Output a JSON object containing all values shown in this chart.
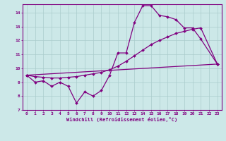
{
  "xlabel": "Windchill (Refroidissement éolien,°C)",
  "bg_color": "#cce8e8",
  "line_color": "#800080",
  "grid_color": "#aacccc",
  "xlim": [
    -0.5,
    23.5
  ],
  "ylim": [
    7,
    14.6
  ],
  "xticks": [
    0,
    1,
    2,
    3,
    4,
    5,
    6,
    7,
    8,
    9,
    10,
    11,
    12,
    13,
    14,
    15,
    16,
    17,
    18,
    19,
    20,
    21,
    22,
    23
  ],
  "yticks": [
    7,
    8,
    9,
    10,
    11,
    12,
    13,
    14
  ],
  "line1_x": [
    0,
    1,
    2,
    3,
    4,
    5,
    6,
    7,
    8,
    9,
    10,
    11,
    12,
    13,
    14,
    15,
    16,
    17,
    18,
    19,
    20,
    21,
    23
  ],
  "line1_y": [
    9.5,
    9.0,
    9.1,
    8.7,
    9.0,
    8.7,
    7.5,
    8.3,
    8.0,
    8.4,
    9.5,
    11.1,
    11.1,
    13.3,
    14.5,
    14.5,
    13.8,
    13.7,
    13.5,
    12.9,
    12.9,
    12.1,
    10.3
  ],
  "line2_x": [
    0,
    1,
    2,
    3,
    4,
    5,
    6,
    7,
    8,
    9,
    10,
    11,
    12,
    13,
    14,
    15,
    16,
    17,
    18,
    19,
    20,
    21,
    23
  ],
  "line2_y": [
    9.5,
    9.4,
    9.35,
    9.3,
    9.3,
    9.35,
    9.4,
    9.5,
    9.6,
    9.7,
    9.9,
    10.15,
    10.5,
    10.9,
    11.3,
    11.7,
    12.0,
    12.25,
    12.5,
    12.65,
    12.8,
    12.9,
    10.3
  ],
  "line3_x": [
    0,
    23
  ],
  "line3_y": [
    9.5,
    10.3
  ]
}
